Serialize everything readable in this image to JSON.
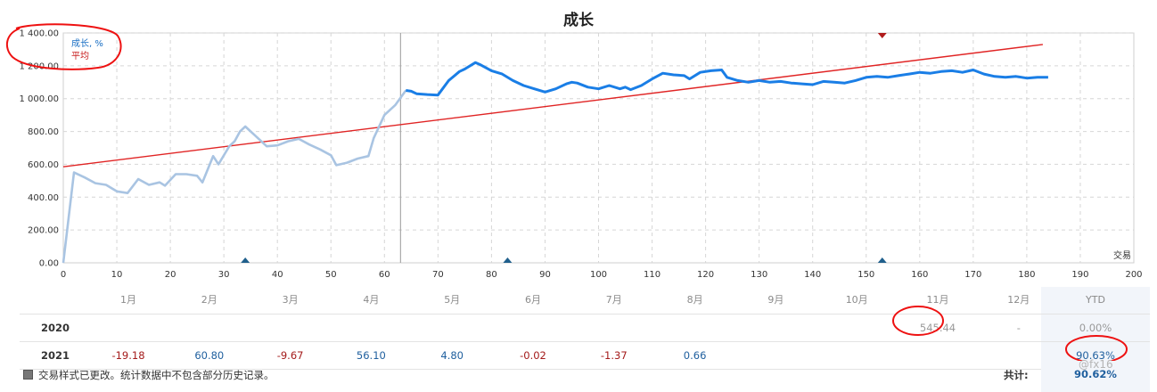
{
  "chart_data": {
    "type": "line",
    "title": "成长",
    "legend": {
      "items": [
        "成长, %",
        "平均"
      ],
      "position": "top-left"
    },
    "xlabel": "交易",
    "xlim": [
      0,
      200
    ],
    "ylim": [
      0,
      1400
    ],
    "x_ticks": [
      "0",
      "10",
      "20",
      "30",
      "40",
      "50",
      "60",
      "70",
      "80",
      "90",
      "100",
      "110",
      "120",
      "130",
      "140",
      "150",
      "160",
      "170",
      "180",
      "190",
      "200"
    ],
    "y_ticks": [
      "0.00",
      "200.00",
      "400.00",
      "600.00",
      "800.00",
      "1 000.00",
      "1 200.00",
      "1 400.00"
    ],
    "grid": true,
    "vertical_marker_x": 63,
    "series": [
      {
        "name": "成长, %",
        "color_history": "#a9c4e2",
        "color_current": "#1a7ee6",
        "split_x": 63,
        "points": [
          [
            0,
            0
          ],
          [
            2,
            550
          ],
          [
            4,
            520
          ],
          [
            6,
            485
          ],
          [
            8,
            475
          ],
          [
            10,
            435
          ],
          [
            12,
            425
          ],
          [
            14,
            510
          ],
          [
            16,
            475
          ],
          [
            18,
            490
          ],
          [
            19,
            470
          ],
          [
            21,
            540
          ],
          [
            23,
            540
          ],
          [
            25,
            530
          ],
          [
            26,
            490
          ],
          [
            28,
            650
          ],
          [
            29,
            600
          ],
          [
            31,
            710
          ],
          [
            32,
            740
          ],
          [
            33,
            800
          ],
          [
            34,
            830
          ],
          [
            36,
            770
          ],
          [
            38,
            710
          ],
          [
            40,
            715
          ],
          [
            42,
            740
          ],
          [
            44,
            755
          ],
          [
            46,
            720
          ],
          [
            48,
            690
          ],
          [
            50,
            655
          ],
          [
            51,
            595
          ],
          [
            53,
            610
          ],
          [
            55,
            635
          ],
          [
            57,
            650
          ],
          [
            58,
            760
          ],
          [
            60,
            900
          ],
          [
            62,
            960
          ],
          [
            64,
            1050
          ],
          [
            65,
            1045
          ],
          [
            66,
            1030
          ],
          [
            68,
            1025
          ],
          [
            70,
            1022
          ],
          [
            72,
            1110
          ],
          [
            74,
            1165
          ],
          [
            75,
            1180
          ],
          [
            77,
            1220
          ],
          [
            78,
            1205
          ],
          [
            80,
            1170
          ],
          [
            82,
            1150
          ],
          [
            84,
            1110
          ],
          [
            86,
            1080
          ],
          [
            88,
            1060
          ],
          [
            90,
            1040
          ],
          [
            92,
            1060
          ],
          [
            94,
            1090
          ],
          [
            95,
            1100
          ],
          [
            96,
            1095
          ],
          [
            98,
            1070
          ],
          [
            100,
            1060
          ],
          [
            102,
            1080
          ],
          [
            104,
            1060
          ],
          [
            105,
            1070
          ],
          [
            106,
            1055
          ],
          [
            108,
            1080
          ],
          [
            110,
            1120
          ],
          [
            112,
            1155
          ],
          [
            114,
            1145
          ],
          [
            116,
            1140
          ],
          [
            117,
            1120
          ],
          [
            119,
            1160
          ],
          [
            121,
            1170
          ],
          [
            123,
            1175
          ],
          [
            124,
            1130
          ],
          [
            126,
            1110
          ],
          [
            128,
            1100
          ],
          [
            130,
            1110
          ],
          [
            132,
            1100
          ],
          [
            134,
            1105
          ],
          [
            136,
            1095
          ],
          [
            138,
            1090
          ],
          [
            140,
            1085
          ],
          [
            142,
            1105
          ],
          [
            144,
            1100
          ],
          [
            146,
            1095
          ],
          [
            148,
            1110
          ],
          [
            150,
            1130
          ],
          [
            152,
            1135
          ],
          [
            154,
            1130
          ],
          [
            156,
            1140
          ],
          [
            158,
            1150
          ],
          [
            160,
            1160
          ],
          [
            162,
            1155
          ],
          [
            164,
            1165
          ],
          [
            166,
            1170
          ],
          [
            168,
            1160
          ],
          [
            170,
            1175
          ],
          [
            172,
            1150
          ],
          [
            174,
            1135
          ],
          [
            176,
            1130
          ],
          [
            178,
            1135
          ],
          [
            180,
            1125
          ],
          [
            182,
            1130
          ],
          [
            184,
            1130
          ]
        ]
      },
      {
        "name": "平均",
        "color": "#e02424",
        "points": [
          [
            0,
            585
          ],
          [
            183,
            1330
          ]
        ]
      }
    ],
    "markers": [
      {
        "x": 34,
        "shape": "triangle-up",
        "color": "#1f5f8c"
      },
      {
        "x": 83,
        "shape": "triangle-up",
        "color": "#1f5f8c"
      },
      {
        "x": 153,
        "shape": "triangle-up",
        "color": "#1f5f8c"
      },
      {
        "x": 153,
        "shape": "triangle-down-top",
        "color": "#b01c1c"
      }
    ]
  },
  "table": {
    "months": [
      "1月",
      "2月",
      "3月",
      "4月",
      "5月",
      "6月",
      "7月",
      "8月",
      "9月",
      "10月",
      "11月",
      "12月"
    ],
    "ytd_header": "YTD",
    "rows": [
      {
        "year": "2020",
        "values": [
          "",
          "",
          "",
          "",
          "",
          "",
          "",
          "",
          "",
          "",
          "545.44",
          "-"
        ],
        "ytd": "0.00%"
      },
      {
        "year": "2021",
        "values": [
          "-19.18",
          "60.80",
          "-9.67",
          "56.10",
          "4.80",
          "-0.02",
          "-1.37",
          "0.66",
          "",
          "",
          "",
          ""
        ],
        "ytd": "90.63%"
      }
    ]
  },
  "footer": {
    "note": "交易样式已更改。统计数据中不包含部分历史记录。",
    "total_label": "共计:",
    "total_value": "90.62%",
    "watermark": "@fx16"
  }
}
